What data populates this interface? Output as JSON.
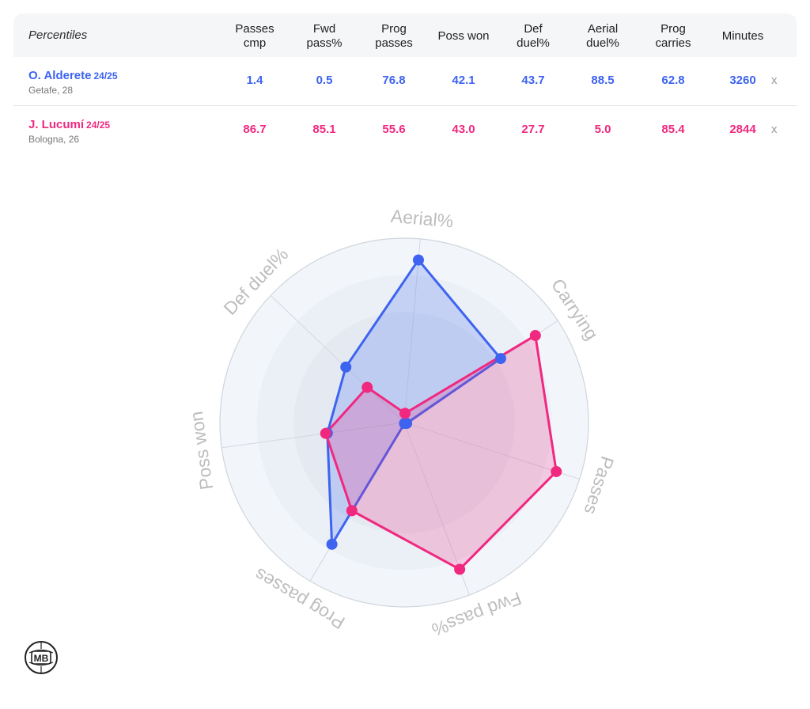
{
  "table": {
    "corner_label": "Percentiles",
    "columns": [
      {
        "line1": "Passes",
        "line2": "cmp"
      },
      {
        "line1": "Fwd",
        "line2": "pass%"
      },
      {
        "line1": "Prog",
        "line2": "passes"
      },
      {
        "line1": "Poss won",
        "line2": ""
      },
      {
        "line1": "Def",
        "line2": "duel%"
      },
      {
        "line1": "Aerial",
        "line2": "duel%"
      },
      {
        "line1": "Prog",
        "line2": "carries"
      },
      {
        "line1": "Minutes",
        "line2": ""
      }
    ],
    "remove_label": "x",
    "players": [
      {
        "name": "O. Alderete",
        "season": "24/25",
        "club": "Getafe, 28",
        "color": "#3d63f0",
        "values": [
          "1.4",
          "0.5",
          "76.8",
          "42.1",
          "43.7",
          "88.5",
          "62.8",
          "3260"
        ]
      },
      {
        "name": "J. Lucumí",
        "season": "24/25",
        "club": "Bologna, 26",
        "color": "#f0287f",
        "values": [
          "86.7",
          "85.1",
          "55.6",
          "43.0",
          "27.7",
          "5.0",
          "85.4",
          "2844"
        ]
      }
    ]
  },
  "chart_data": {
    "type": "radar",
    "axes": [
      "Aerial%",
      "Carrying",
      "Passes",
      "Fwd pass%",
      "Prog passes",
      "Poss won",
      "Def duel%"
    ],
    "range": [
      0,
      100
    ],
    "series": [
      {
        "name": "O. Alderete",
        "color": "#3d63f0",
        "values": [
          88.5,
          62.8,
          1.4,
          0.5,
          76.8,
          42.1,
          43.7
        ]
      },
      {
        "name": "J. Lucumí",
        "color": "#f0287f",
        "values": [
          5.0,
          85.4,
          86.7,
          85.1,
          55.6,
          43.0,
          27.7
        ]
      }
    ]
  },
  "colors": {
    "ring_outer": "#f2f6fb",
    "ring_mid": "#ebf0f7",
    "ring_inner": "#e5eaf2",
    "axis_label": "#bdbdbd",
    "spoke": "#d4d8de"
  },
  "logo": {
    "text": "MB",
    "icon": "mb-logo-icon"
  }
}
